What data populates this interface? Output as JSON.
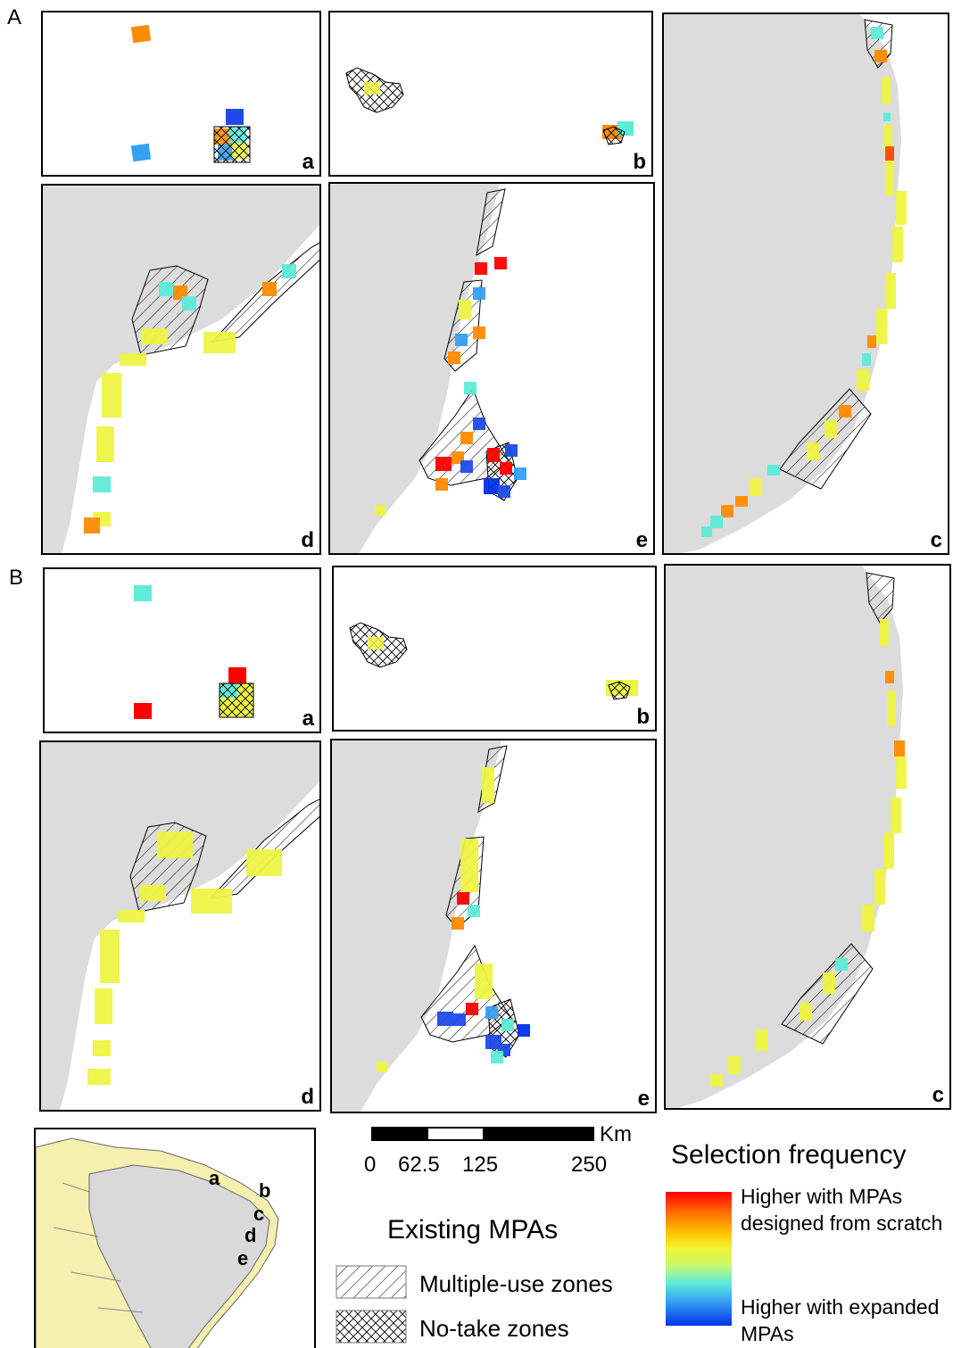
{
  "sections": [
    {
      "label": "A",
      "panels": {
        "a": "a",
        "b": "b",
        "c": "c",
        "d": "d",
        "e": "e"
      }
    },
    {
      "label": "B",
      "panels": {
        "a": "a",
        "b": "b",
        "c": "c",
        "d": "d",
        "e": "e"
      }
    }
  ],
  "scale_bar": {
    "unit": "Km",
    "ticks": [
      "0",
      "62.5",
      "125",
      "250"
    ]
  },
  "existing_mpas": {
    "title": "Existing MPAs",
    "items": [
      {
        "label": "Multiple-use zones",
        "pattern": "hatch"
      },
      {
        "label": "No-take zones",
        "pattern": "crosshatch"
      }
    ]
  },
  "legend": {
    "title": "Selection frequency",
    "high_label": "Higher with MPAs designed from scratch",
    "low_label": "Higher with expanded MPAs",
    "colors": [
      "#ff0000",
      "#ff4a00",
      "#ff8c00",
      "#ffc000",
      "#ffe000",
      "#eef544",
      "#d6f85a",
      "#9cf4a4",
      "#5eecd8",
      "#36b4f0",
      "#1f73f0",
      "#0033e8"
    ]
  },
  "inset_map": {
    "labels": [
      "a",
      "b",
      "c",
      "d",
      "e"
    ]
  }
}
